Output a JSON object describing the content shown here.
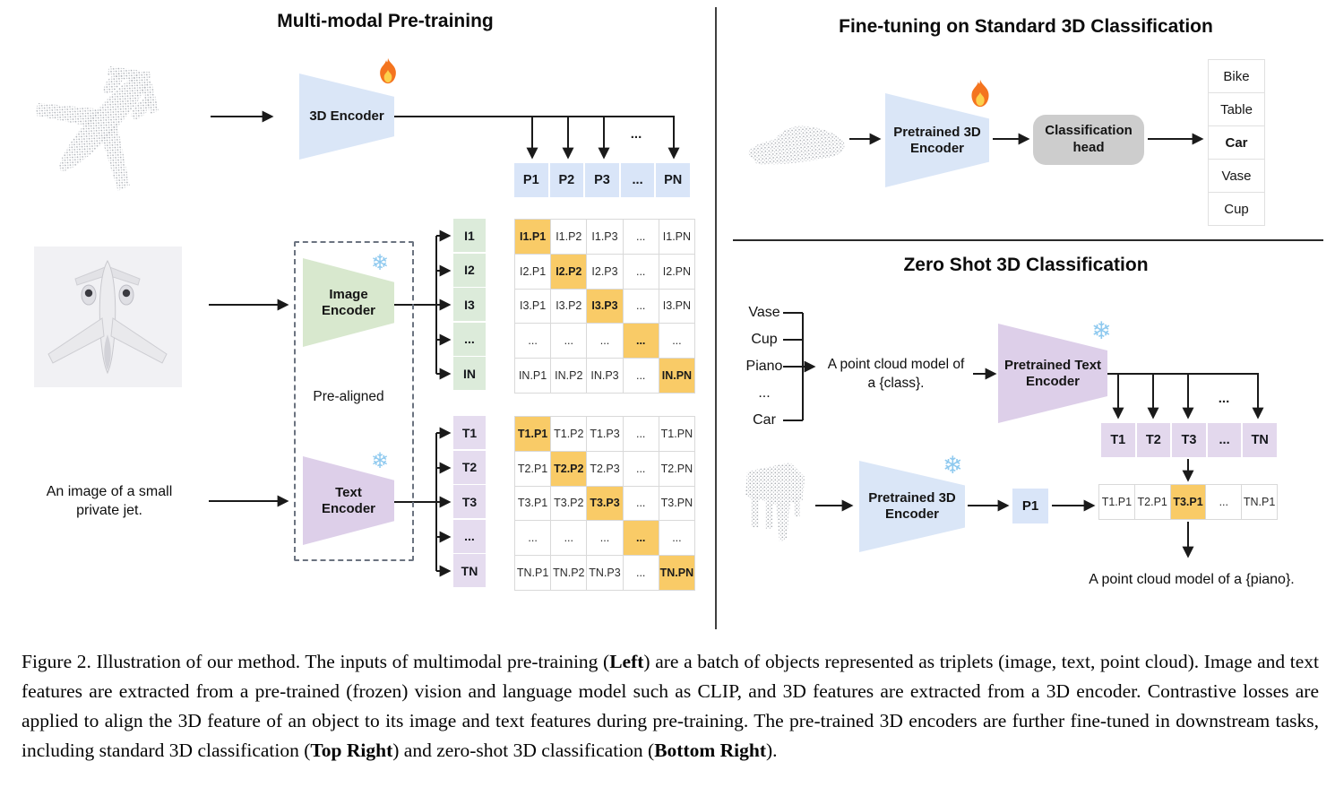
{
  "left": {
    "title": "Multi-modal Pre-training",
    "encoder_3d": "3D Encoder",
    "image_encoder": "Image\nEncoder",
    "text_encoder": "Text\nEncoder",
    "prealigned": "Pre-aligned",
    "image_caption": "An image of a small\nprivate jet.",
    "dots": "...",
    "p_row": [
      "P1",
      "P2",
      "P3",
      "...",
      "PN"
    ],
    "i_labels": [
      "I1",
      "I2",
      "I3",
      "...",
      "IN"
    ],
    "i_matrix": {
      "highlight": "diag",
      "rows": [
        [
          "I1.P1",
          "I1.P2",
          "I1.P3",
          "...",
          "I1.PN"
        ],
        [
          "I2.P1",
          "I2.P2",
          "I2.P3",
          "...",
          "I2.PN"
        ],
        [
          "I3.P1",
          "I3.P2",
          "I3.P3",
          "...",
          "I3.PN"
        ],
        [
          "...",
          "...",
          "...",
          "...",
          "..."
        ],
        [
          "IN.P1",
          "IN.P2",
          "IN.P3",
          "...",
          "IN.PN"
        ]
      ]
    },
    "t_labels": [
      "T1",
      "T2",
      "T3",
      "...",
      "TN"
    ],
    "t_matrix": {
      "highlight": "diag",
      "rows": [
        [
          "T1.P1",
          "T1.P2",
          "T1.P3",
          "...",
          "T1.PN"
        ],
        [
          "T2.P1",
          "T2.P2",
          "T2.P3",
          "...",
          "T2.PN"
        ],
        [
          "T3.P1",
          "T3.P2",
          "T3.P3",
          "...",
          "T3.PN"
        ],
        [
          "...",
          "...",
          "...",
          "...",
          "..."
        ],
        [
          "TN.P1",
          "TN.P2",
          "TN.P3",
          "...",
          "TN.PN"
        ]
      ]
    }
  },
  "top_right": {
    "title": "Fine-tuning on Standard 3D Classification",
    "encoder": "Pretrained 3D\nEncoder",
    "head": "Classification\nhead",
    "classes": {
      "items": [
        "Bike",
        "Table",
        "Car",
        "Vase",
        "Cup"
      ],
      "highlight_index": 2
    }
  },
  "bottom_right": {
    "title": "Zero Shot 3D Classification",
    "class_prompts": [
      "Vase",
      "Cup",
      "Piano",
      "...",
      "Car"
    ],
    "prompt": "A point cloud model of\na {class}.",
    "text_encoder": "Pretrained Text\nEncoder",
    "encoder_3d": "Pretrained 3D\nEncoder",
    "p1": "P1",
    "dots": "...",
    "t_row": [
      "T1",
      "T2",
      "T3",
      "...",
      "TN"
    ],
    "tp_row": {
      "items": [
        "T1.P1",
        "T2.P1",
        "T3.P1",
        "...",
        "TN.P1"
      ],
      "highlight_index": 2
    },
    "result": "A point cloud model of a {piano}."
  },
  "icons": {
    "trainable": "fire-icon",
    "frozen": "snowflake-icon",
    "snowflake_char": "❄"
  },
  "colors": {
    "highlight": "#F9CB67",
    "blue": "#DAE6F7",
    "green": "#D8E8CE",
    "purple": "#DDCFE9",
    "head_gray": "#CDCDCD"
  },
  "caption": {
    "segments": [
      {
        "text": "Figure 2. Illustration of our method. The inputs of multimodal pre-training ("
      },
      {
        "text": "Left",
        "bold": true
      },
      {
        "text": ") are a batch of objects represented as triplets (image, text, point cloud). Image and text features are extracted from a pre-trained (frozen) vision and language model such as CLIP, and 3D features are extracted from a 3D encoder. Contrastive losses are applied to align the 3D feature of an object to its image and text features during pre-training. The pre-trained 3D encoders are further fine-tuned in downstream tasks, including standard 3D classification ("
      },
      {
        "text": "Top Right",
        "bold": true
      },
      {
        "text": ") and zero-shot 3D classification ("
      },
      {
        "text": "Bottom Right",
        "bold": true
      },
      {
        "text": ")."
      }
    ]
  }
}
